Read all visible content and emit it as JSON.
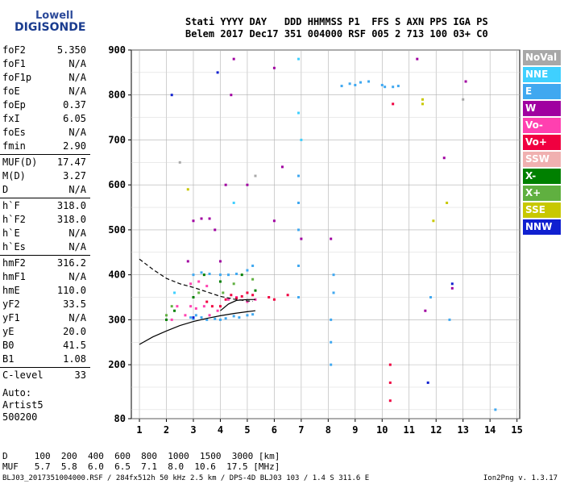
{
  "logo": {
    "line1": "Lowell",
    "line2": "DIGISONDE"
  },
  "header": {
    "labels": "Stati YYYY DAY   DDD HHMMSS P1  FFS S AXN PPS IGA PS",
    "values": "Belem 2017 Dec17 351 004000 RSF 005 2 713 100 03+ C0"
  },
  "params": [
    {
      "k": "foF2",
      "v": "5.350"
    },
    {
      "k": "foF1",
      "v": "N/A"
    },
    {
      "k": "foF1p",
      "v": "N/A"
    },
    {
      "k": "foE",
      "v": "N/A"
    },
    {
      "k": "foEp",
      "v": "0.37"
    },
    {
      "k": "fxI",
      "v": "6.05"
    },
    {
      "k": "foEs",
      "v": "N/A"
    },
    {
      "k": "fmin",
      "v": "2.90"
    },
    {
      "k": "MUF(D)",
      "v": "17.47"
    },
    {
      "k": "M(D)",
      "v": "3.27"
    },
    {
      "k": "D",
      "v": "N/A"
    },
    {
      "k": "h`F",
      "v": "318.0"
    },
    {
      "k": "h`F2",
      "v": "318.0"
    },
    {
      "k": "h`E",
      "v": "N/A"
    },
    {
      "k": "h`Es",
      "v": "N/A"
    },
    {
      "k": "hmF2",
      "v": "316.2"
    },
    {
      "k": "hmF1",
      "v": "N/A"
    },
    {
      "k": "hmE",
      "v": "110.0"
    },
    {
      "k": "yF2",
      "v": "33.5"
    },
    {
      "k": "yF1",
      "v": "N/A"
    },
    {
      "k": "yE",
      "v": "20.0"
    },
    {
      "k": "B0",
      "v": "41.5"
    },
    {
      "k": "B1",
      "v": "1.08"
    },
    {
      "k": "C-level",
      "v": "33"
    }
  ],
  "auto": {
    "l1": "Auto:",
    "l2": "Artist5",
    "l3": "500200"
  },
  "legend": [
    {
      "label": "NoVal",
      "color": "#a8a8a8"
    },
    {
      "label": "NNE",
      "color": "#3fd0ff"
    },
    {
      "label": "E",
      "color": "#40a8f0"
    },
    {
      "label": "W",
      "color": "#a000a0"
    },
    {
      "label": "Vo-",
      "color": "#ff40b0"
    },
    {
      "label": "Vo+",
      "color": "#f00040"
    },
    {
      "label": "SSW",
      "color": "#f0b0b0"
    },
    {
      "label": "X-",
      "color": "#008000"
    },
    {
      "label": "X+",
      "color": "#60b040"
    },
    {
      "label": "SSE",
      "color": "#c8c800"
    },
    {
      "label": "NNW",
      "color": "#1020d0"
    }
  ],
  "dmuf": {
    "d_line": "D     100  200  400  600  800  1000  1500  3000 [km]",
    "muf_line": "MUF   5.7  5.8  6.0  6.5  7.1  8.0  10.6  17.5 [MHz]"
  },
  "footer": {
    "left": "BLJ03_2017351004000.RSF / 284fx512h 50 kHz 2.5 km / DPS-4D BLJ03 103 / 1.4 S 311.6 E",
    "right": "Ion2Png v. 1.3.17"
  },
  "chart_data": {
    "type": "scatter",
    "xlabel": "",
    "ylabel": "",
    "xlim": [
      0.7,
      15.1
    ],
    "ylim": [
      80,
      900
    ],
    "x_ticks": [
      1,
      2,
      3,
      4,
      5,
      6,
      7,
      8,
      9,
      10,
      11,
      12,
      13,
      14,
      15
    ],
    "y_ticks": [
      80,
      200,
      300,
      400,
      500,
      600,
      700,
      800,
      900
    ],
    "grid": true,
    "series": [
      {
        "name": "E",
        "color": "#40a8f0",
        "points": [
          [
            2.9,
            305
          ],
          [
            3.0,
            302
          ],
          [
            3.1,
            310
          ],
          [
            3.3,
            305
          ],
          [
            3.5,
            300
          ],
          [
            3.8,
            302
          ],
          [
            4.0,
            300
          ],
          [
            4.2,
            303
          ],
          [
            4.5,
            308
          ],
          [
            4.7,
            305
          ],
          [
            5.0,
            310
          ],
          [
            5.2,
            312
          ],
          [
            3.0,
            400
          ],
          [
            3.3,
            405
          ],
          [
            3.6,
            402
          ],
          [
            4.0,
            400
          ],
          [
            4.3,
            400
          ],
          [
            4.6,
            402
          ],
          [
            5.0,
            410
          ],
          [
            5.2,
            420
          ],
          [
            6.9,
            350
          ],
          [
            6.9,
            420
          ],
          [
            6.9,
            500
          ],
          [
            6.9,
            560
          ],
          [
            6.9,
            620
          ],
          [
            8.1,
            300
          ],
          [
            8.1,
            250
          ],
          [
            8.1,
            200
          ],
          [
            8.2,
            400
          ],
          [
            8.2,
            360
          ],
          [
            8.5,
            820
          ],
          [
            8.8,
            825
          ],
          [
            9.0,
            822
          ],
          [
            9.2,
            828
          ],
          [
            9.5,
            830
          ],
          [
            10.0,
            822
          ],
          [
            10.1,
            818
          ],
          [
            10.4,
            818
          ],
          [
            10.6,
            820
          ],
          [
            11.8,
            350
          ],
          [
            12.5,
            300
          ],
          [
            14.2,
            100
          ]
        ]
      },
      {
        "name": "W",
        "color": "#a000a0",
        "points": [
          [
            2.8,
            430
          ],
          [
            3.0,
            520
          ],
          [
            3.3,
            525
          ],
          [
            3.6,
            525
          ],
          [
            3.8,
            500
          ],
          [
            4.0,
            430
          ],
          [
            4.2,
            600
          ],
          [
            4.4,
            800
          ],
          [
            4.5,
            880
          ],
          [
            5.0,
            600
          ],
          [
            6.0,
            520
          ],
          [
            6.0,
            860
          ],
          [
            6.3,
            640
          ],
          [
            7.0,
            480
          ],
          [
            8.1,
            480
          ],
          [
            11.3,
            880
          ],
          [
            11.6,
            320
          ],
          [
            12.3,
            660
          ],
          [
            12.6,
            370
          ],
          [
            13.1,
            830
          ]
        ]
      },
      {
        "name": "Vo-",
        "color": "#ff40b0",
        "points": [
          [
            2.7,
            310
          ],
          [
            2.9,
            330
          ],
          [
            3.1,
            325
          ],
          [
            3.4,
            330
          ],
          [
            3.6,
            310
          ],
          [
            3.9,
            320
          ],
          [
            4.3,
            345
          ],
          [
            4.6,
            350
          ],
          [
            5.0,
            340
          ],
          [
            5.3,
            345
          ],
          [
            2.9,
            380
          ],
          [
            3.2,
            385
          ],
          [
            3.5,
            375
          ],
          [
            2.4,
            330
          ],
          [
            2.2,
            300
          ]
        ]
      },
      {
        "name": "Vo+",
        "color": "#f00040",
        "points": [
          [
            3.5,
            340
          ],
          [
            3.7,
            330
          ],
          [
            4.0,
            330
          ],
          [
            4.2,
            345
          ],
          [
            4.4,
            355
          ],
          [
            4.6,
            348
          ],
          [
            4.8,
            352
          ],
          [
            5.0,
            360
          ],
          [
            5.2,
            355
          ],
          [
            5.8,
            350
          ],
          [
            6.0,
            345
          ],
          [
            6.5,
            355
          ],
          [
            10.3,
            200
          ],
          [
            10.3,
            160
          ],
          [
            10.3,
            120
          ],
          [
            10.4,
            780
          ]
        ]
      },
      {
        "name": "NNE",
        "color": "#3fd0ff",
        "points": [
          [
            6.9,
            880
          ],
          [
            6.9,
            760
          ],
          [
            7.0,
            700
          ],
          [
            4.5,
            560
          ],
          [
            2.3,
            360
          ]
        ]
      },
      {
        "name": "X-",
        "color": "#008000",
        "points": [
          [
            2.0,
            300
          ],
          [
            2.3,
            320
          ],
          [
            3.0,
            350
          ],
          [
            3.4,
            400
          ],
          [
            4.0,
            385
          ],
          [
            4.8,
            400
          ],
          [
            5.3,
            365
          ]
        ]
      },
      {
        "name": "X+",
        "color": "#60b040",
        "points": [
          [
            2.0,
            310
          ],
          [
            2.2,
            330
          ],
          [
            3.2,
            360
          ],
          [
            4.1,
            360
          ],
          [
            4.5,
            380
          ],
          [
            5.2,
            390
          ]
        ]
      },
      {
        "name": "SSE",
        "color": "#c8c800",
        "points": [
          [
            2.8,
            590
          ],
          [
            11.5,
            790
          ],
          [
            11.9,
            520
          ],
          [
            12.4,
            560
          ],
          [
            11.5,
            780
          ]
        ]
      },
      {
        "name": "NNW",
        "color": "#1020d0",
        "points": [
          [
            2.2,
            800
          ],
          [
            3.0,
            305
          ],
          [
            3.9,
            850
          ],
          [
            11.7,
            160
          ],
          [
            12.6,
            380
          ]
        ]
      },
      {
        "name": "NoVal",
        "color": "#a8a8a8",
        "points": [
          [
            2.5,
            650
          ],
          [
            5.3,
            620
          ],
          [
            13.0,
            790
          ]
        ]
      }
    ],
    "curves": [
      {
        "name": "dashed",
        "points": [
          [
            1.0,
            435
          ],
          [
            1.5,
            412
          ],
          [
            2.0,
            392
          ],
          [
            2.5,
            380
          ],
          [
            3.0,
            372
          ],
          [
            3.5,
            362
          ],
          [
            4.0,
            352
          ],
          [
            4.5,
            346
          ],
          [
            5.0,
            342
          ],
          [
            5.2,
            341
          ]
        ]
      },
      {
        "name": "solid_lower",
        "points": [
          [
            1.0,
            245
          ],
          [
            1.5,
            262
          ],
          [
            2.0,
            275
          ],
          [
            2.5,
            287
          ],
          [
            3.0,
            296
          ],
          [
            3.5,
            303
          ],
          [
            4.0,
            309
          ],
          [
            4.5,
            314
          ],
          [
            5.0,
            318
          ],
          [
            5.3,
            320
          ]
        ]
      },
      {
        "name": "solid_upper",
        "points": [
          [
            4.0,
            320
          ],
          [
            4.3,
            335
          ],
          [
            4.6,
            343
          ],
          [
            5.0,
            345
          ],
          [
            5.3,
            345
          ]
        ]
      }
    ]
  }
}
